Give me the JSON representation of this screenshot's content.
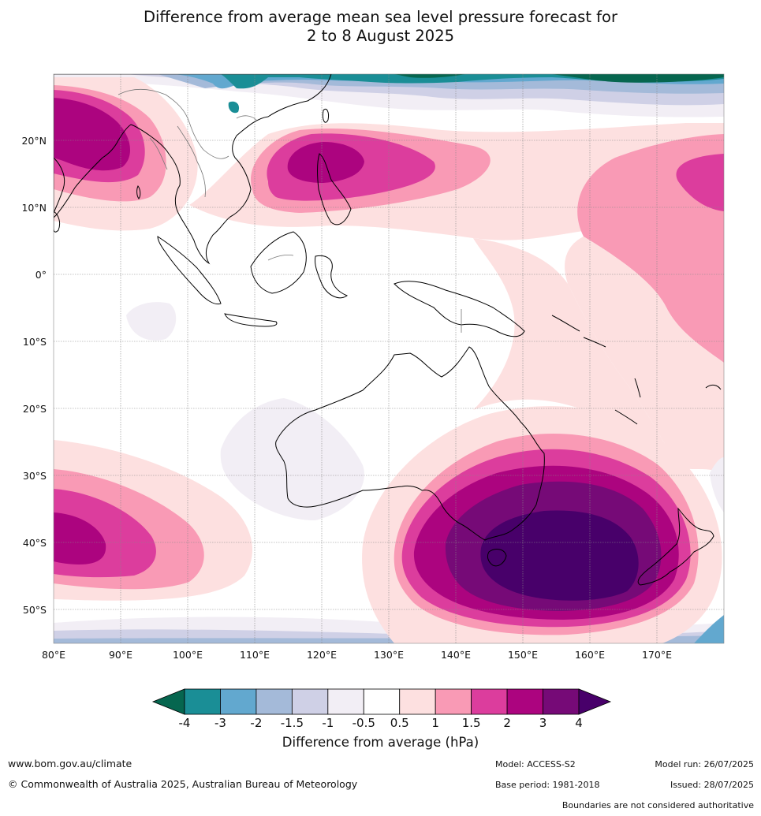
{
  "title": {
    "line1": "Difference from average mean sea level pressure forecast for",
    "line2": "2 to 8 August 2025"
  },
  "map": {
    "lat_labels": [
      "20°N",
      "10°N",
      "0°",
      "10°S",
      "20°S",
      "30°S",
      "40°S",
      "50°S"
    ],
    "lon_labels": [
      "80°E",
      "90°E",
      "100°E",
      "110°E",
      "120°E",
      "130°E",
      "140°E",
      "150°E",
      "160°E",
      "170°E"
    ]
  },
  "legend": {
    "title": "Difference from average (hPa)",
    "tick_labels": [
      "-4",
      "-3",
      "-2",
      "-1.5",
      "-1",
      "-0.5",
      "0.5",
      "1",
      "1.5",
      "2",
      "3",
      "4"
    ],
    "colors": [
      "#06664f",
      "#1a8e96",
      "#62a8cf",
      "#a4bad9",
      "#cfd0e6",
      "#f2eef5",
      "#ffffff",
      "#fde0e0",
      "#f99ab5",
      "#dc3d9d",
      "#ac047f",
      "#760a77",
      "#48006a"
    ]
  },
  "footer": {
    "website": "www.bom.gov.au/climate",
    "copyright": "© Commonwealth of Australia 2025, Australian Bureau of Meteorology",
    "model": "Model: ACCESS-S2",
    "base_period": "Base period: 1981-2018",
    "model_run": "Model run: 26/07/2025",
    "issued": "Issued: 28/07/2025",
    "disclaimer": "Boundaries are not considered authoritative"
  }
}
